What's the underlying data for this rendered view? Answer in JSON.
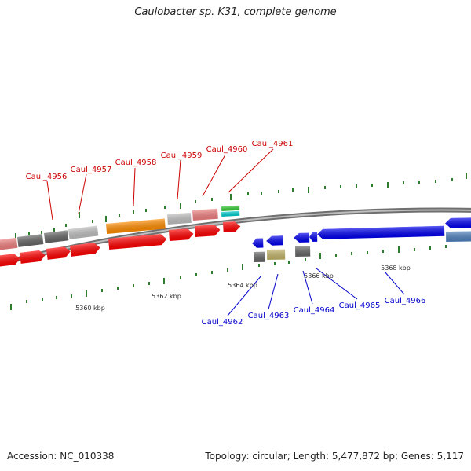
{
  "title": "Caulobacter sp. K31, complete genome",
  "footer": {
    "accession": "Accession: NC_010338",
    "summary": "Topology: circular; Length: 5,477,872 bp; Genes: 5,117"
  },
  "colors": {
    "backbone": "#8a8a8a",
    "tick": "#2e7d2e",
    "forward_label": "#cc0000",
    "reverse_label": "#0000cc",
    "red": "#ff0000",
    "pink": "#f08080",
    "orange": "#ff8c00",
    "gray_dark": "#666666",
    "gray_light": "#c0c0c0",
    "blue": "#0000ee",
    "steel": "#4f81bd",
    "green": "#33cc33",
    "cyan": "#00cccc",
    "khaki": "#c2b46a"
  },
  "scale_labels": [
    "5360 kbp",
    "5362 kbp",
    "5364 kbp",
    "5366 kbp",
    "5368 kbp"
  ],
  "forward_genes": [
    "Caul_4956",
    "Caul_4957",
    "Caul_4958",
    "Caul_4959",
    "Caul_4960",
    "Caul_4961"
  ],
  "reverse_genes": [
    "Caul_4962",
    "Caul_4963",
    "Caul_4964",
    "Caul_4965",
    "Caul_4966"
  ]
}
